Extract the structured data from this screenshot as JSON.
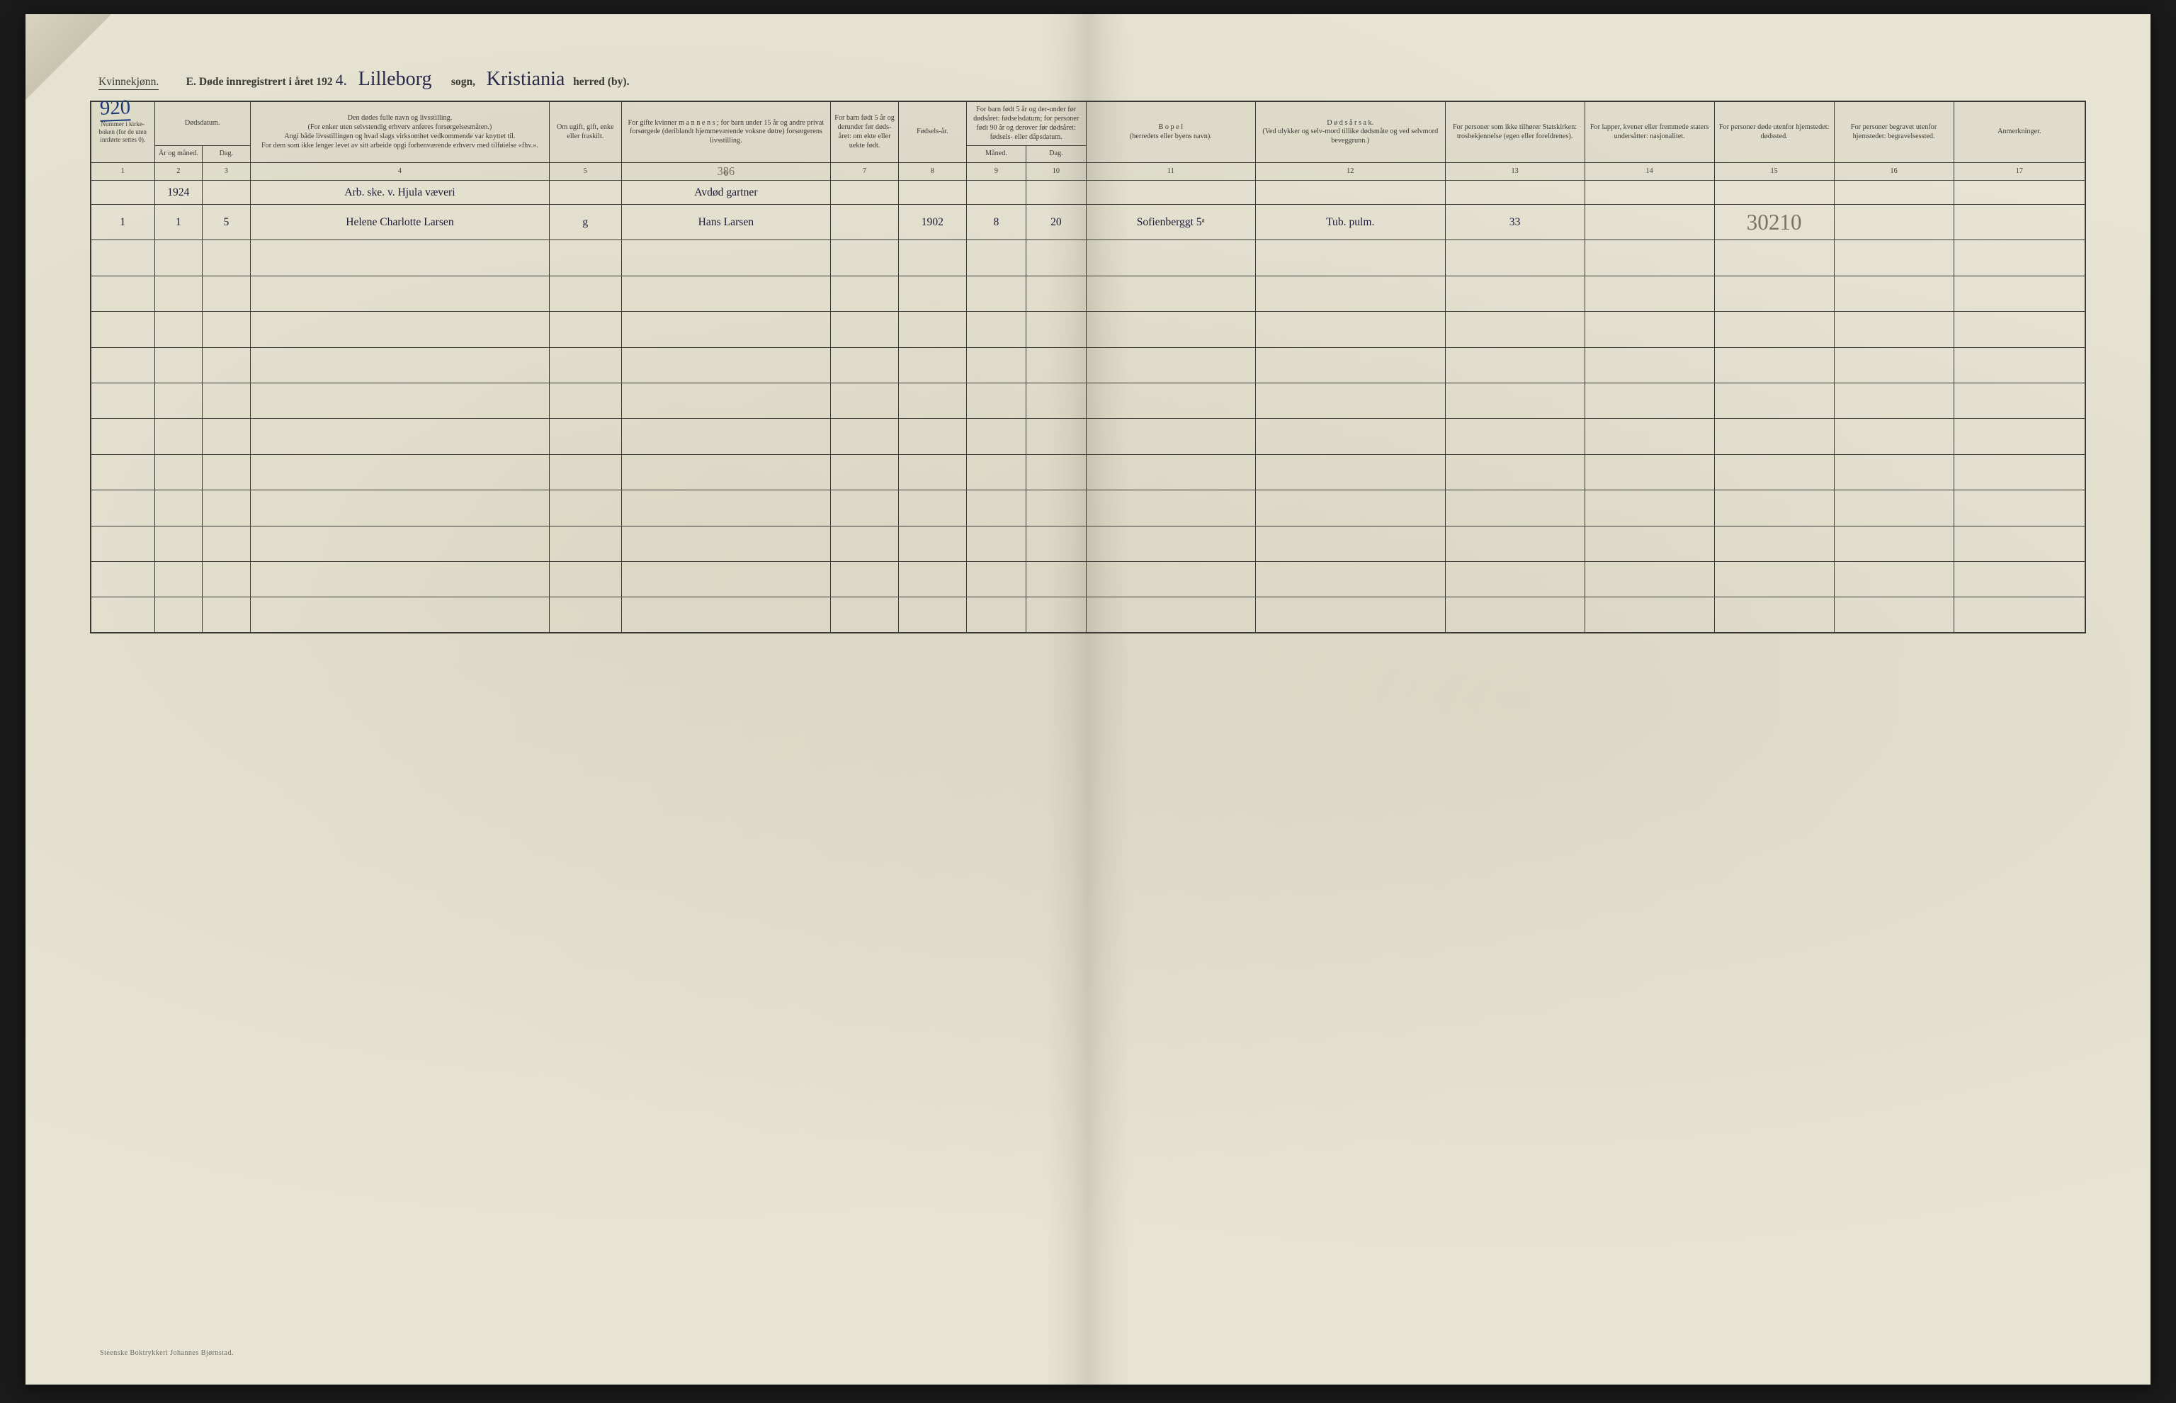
{
  "page": {
    "background_color": "#e8e4d4",
    "ink_color": "#3a3a35",
    "handwriting_color": "#2a2a4a",
    "pencil_color": "#7a7265",
    "page_number_color": "#1a3a7a",
    "aspect_ratio": "3072/1980"
  },
  "header": {
    "gender_label": "Kvinnekjønn.",
    "page_number": "920",
    "title_prefix": "E.  Døde innregistrert i året 192",
    "year_suffix_handwritten": "4.",
    "sogn_value": "Lilleborg",
    "sogn_label": "sogn,",
    "herred_value": "Kristiania",
    "herred_label": "herred (by)."
  },
  "columns": {
    "widths_pct": [
      3.2,
      2.4,
      2.4,
      15,
      3.6,
      10.5,
      3.4,
      3.4,
      3.0,
      3.0,
      8.5,
      9.5,
      7.0,
      6.5,
      6.0,
      6.0,
      6.6
    ],
    "headers": {
      "c1_top": "Nummer i kirke-boken (for de uten",
      "c1_bot": "innførte settes 0).",
      "c2_top": "Dødsdatum.",
      "c2_year": "År og måned.",
      "c2_day": "Dag.",
      "c3": "Den dødes fulle navn og livsstilling.\n(For enker uten selvstendig erhverv anføres forsørgelsesmåten.)\nAngi både livsstillingen og hvad slags virksomhet vedkommende var knyttet til.\nFor dem som ikke lenger levet av sitt arbeide opgi forhenværende erhverv med tilføielse «fhv.».",
      "c4": "Om ugift, gift, enke eller fraskilt.",
      "c5": "For gifte kvinner m a n n e n s ; for barn under 15 år og andre privat forsørgede (deriblandt hjemmeværende voksne døtre) forsørgerens livsstilling.",
      "c6": "For barn født 5 år og derunder før døds-året: om ekte eller uekte født.",
      "c7": "Fødsels-år.",
      "c8_top": "For barn født 5 år og der-under før dødsåret: fødselsdatum; for personer født 90 år og derover før dødsåret: fødsels- eller dåpsdatum.",
      "c8_month": "Måned.",
      "c8_day": "Dag.",
      "c9": "B o p e l\n(herredets eller byens navn).",
      "c10": "D ø d s å r s a k.\n(Ved ulykker og selv-mord tillike dødsmåte og ved selvmord beveggrunn.)",
      "c11": "For personer som ikke tilhører Statskirken: trosbekjennelse (egen eller foreldrenes).",
      "c12": "For lapper, kvener eller fremmede staters undersåtter: nasjonalitet.",
      "c13": "For personer døde utenfor hjemstedet: dødssted.",
      "c14": "For personer begravet utenfor hjemstedet: begravelsessted.",
      "c15": "Anmerkninger."
    },
    "numbers": [
      "1",
      "2",
      "3",
      "4",
      "5",
      "6",
      "7",
      "8",
      "9",
      "10",
      "11",
      "12",
      "13",
      "14",
      "15",
      "16",
      "17"
    ]
  },
  "pencil_annotations": {
    "col6_top": "386",
    "col15_row1": "30210"
  },
  "rows": [
    {
      "num": "",
      "year_month": "1924",
      "day": "",
      "name": "Arb. ske. v. Hjula væveri",
      "marital": "",
      "provider": "Avdød gartner",
      "born_legit": "",
      "birth_year": "",
      "birth_month": "",
      "birth_day": "",
      "residence": "",
      "cause": "",
      "faith": "",
      "nationality": "",
      "death_place": "",
      "burial_place": "",
      "remarks": ""
    },
    {
      "num": "1",
      "year_month": "1",
      "day": "5",
      "name": "Helene Charlotte Larsen",
      "marital": "g",
      "provider": "Hans Larsen",
      "born_legit": "",
      "birth_year": "1902",
      "birth_month": "8",
      "birth_day": "20",
      "residence": "Sofienberggt 5ᵃ",
      "cause": "Tub. pulm.",
      "faith": "33",
      "nationality": "",
      "death_place": "",
      "burial_place": "",
      "remarks": ""
    }
  ],
  "empty_rows_count": 11,
  "footer": {
    "printer": "Steenske Boktrykkeri Johannes Bjørnstad."
  }
}
